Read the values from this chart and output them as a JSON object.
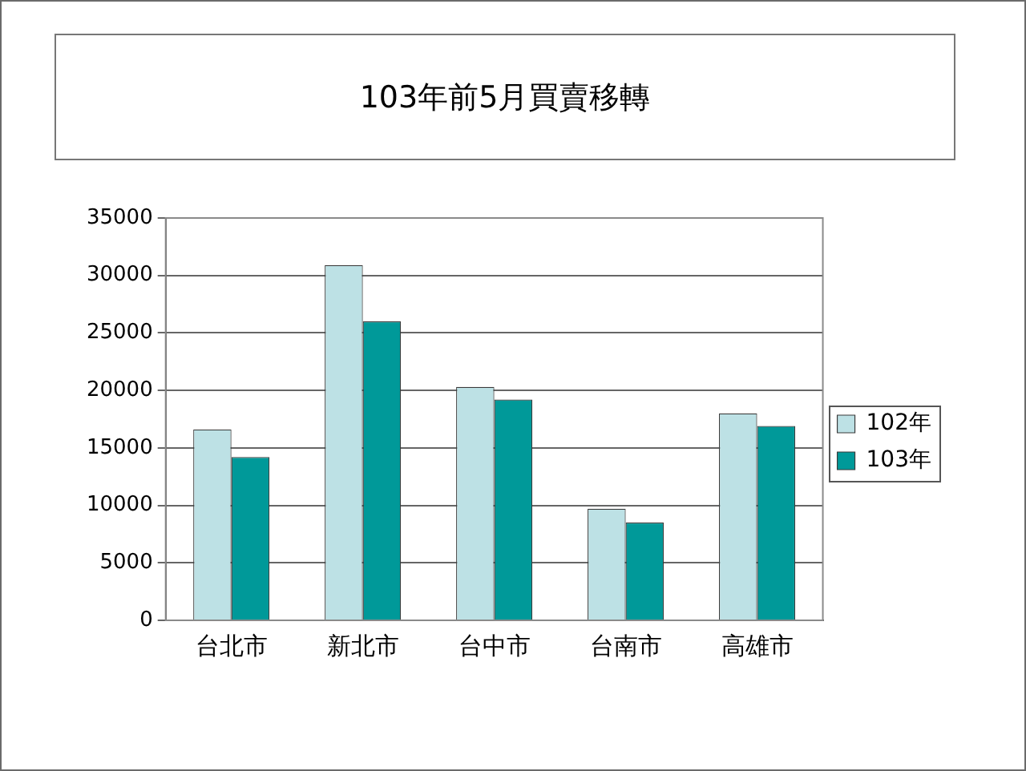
{
  "chart_data": {
    "type": "bar",
    "title": "103年前5月買賣移轉",
    "categories": [
      "台北市",
      "新北市",
      "台中市",
      "台南市",
      "高雄市"
    ],
    "series": [
      {
        "name": "102年",
        "color": "#bde1e5",
        "values": [
          16600,
          30900,
          20300,
          9700,
          18000
        ]
      },
      {
        "name": "103年",
        "color": "#009999",
        "values": [
          14200,
          26000,
          19200,
          8500,
          16900
        ]
      }
    ],
    "ylim": [
      0,
      35000
    ],
    "yticks": [
      0,
      5000,
      10000,
      15000,
      20000,
      25000,
      30000,
      35000
    ],
    "grid": "y",
    "legend": "right"
  }
}
